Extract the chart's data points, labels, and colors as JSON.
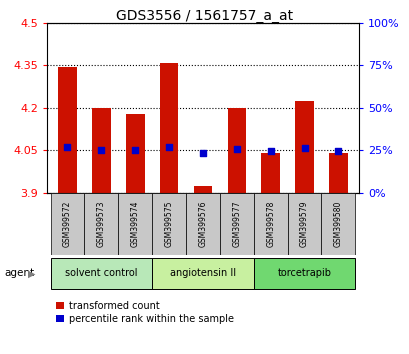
{
  "title": "GDS3556 / 1561757_a_at",
  "samples": [
    "GSM399572",
    "GSM399573",
    "GSM399574",
    "GSM399575",
    "GSM399576",
    "GSM399577",
    "GSM399578",
    "GSM399579",
    "GSM399580"
  ],
  "red_values": [
    4.345,
    4.2,
    4.18,
    4.36,
    3.925,
    4.2,
    4.04,
    4.225,
    4.04
  ],
  "blue_values": [
    4.063,
    4.052,
    4.052,
    4.063,
    4.042,
    4.056,
    4.048,
    4.058,
    4.048
  ],
  "y_min": 3.9,
  "y_max": 4.5,
  "y_ticks_left": [
    3.9,
    4.05,
    4.2,
    4.35,
    4.5
  ],
  "y_ticks_right": [
    0,
    25,
    50,
    75,
    100
  ],
  "groups": [
    {
      "label": "solvent control",
      "indices": [
        0,
        1,
        2
      ],
      "color": "#b8e8b8"
    },
    {
      "label": "angiotensin II",
      "indices": [
        3,
        4,
        5
      ],
      "color": "#c8f0a0"
    },
    {
      "label": "torcetrapib",
      "indices": [
        6,
        7,
        8
      ],
      "color": "#70d870"
    }
  ],
  "agent_label": "agent",
  "bar_color": "#cc1100",
  "blue_color": "#0000cc",
  "legend_red": "transformed count",
  "legend_blue": "percentile rank within the sample",
  "plot_bg": "#ffffff",
  "sample_bg": "#c8c8c8"
}
